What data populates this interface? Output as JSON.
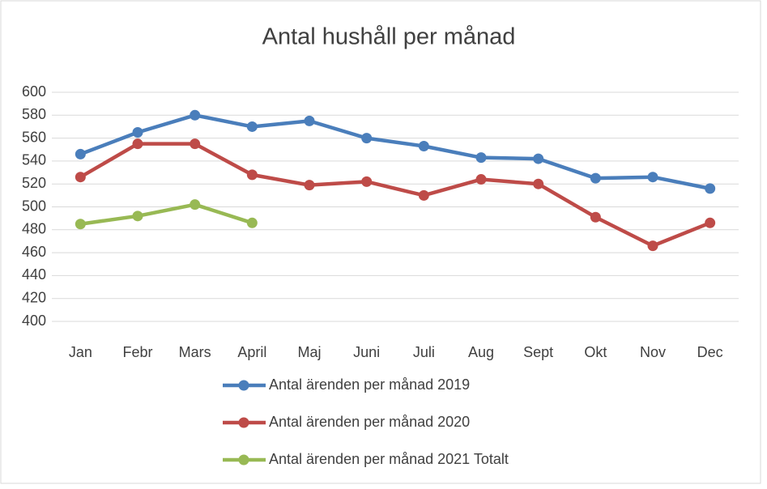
{
  "chart_data": {
    "type": "line",
    "title": "Antal hushåll per månad",
    "categories": [
      "Jan",
      "Febr",
      "Mars",
      "April",
      "Maj",
      "Juni",
      "Juli",
      "Aug",
      "Sept",
      "Okt",
      "Nov",
      "Dec"
    ],
    "series": [
      {
        "name": "Antal ärenden per månad 2019",
        "color": "#4a7ebb",
        "values": [
          546,
          565,
          580,
          570,
          575,
          560,
          553,
          543,
          542,
          525,
          526,
          516
        ]
      },
      {
        "name": "Antal ärenden per månad 2020",
        "color": "#be4b48",
        "values": [
          526,
          555,
          555,
          528,
          519,
          522,
          510,
          524,
          520,
          491,
          466,
          486
        ]
      },
      {
        "name": "Antal ärenden per månad 2021 Totalt",
        "color": "#98b954",
        "values": [
          485,
          492,
          502,
          486,
          null,
          null,
          null,
          null,
          null,
          null,
          null,
          null
        ]
      }
    ],
    "ylim": [
      400,
      600
    ],
    "yticks": [
      400,
      420,
      440,
      460,
      480,
      500,
      520,
      540,
      560,
      580,
      600
    ],
    "grid": true,
    "legend": "bottom"
  }
}
